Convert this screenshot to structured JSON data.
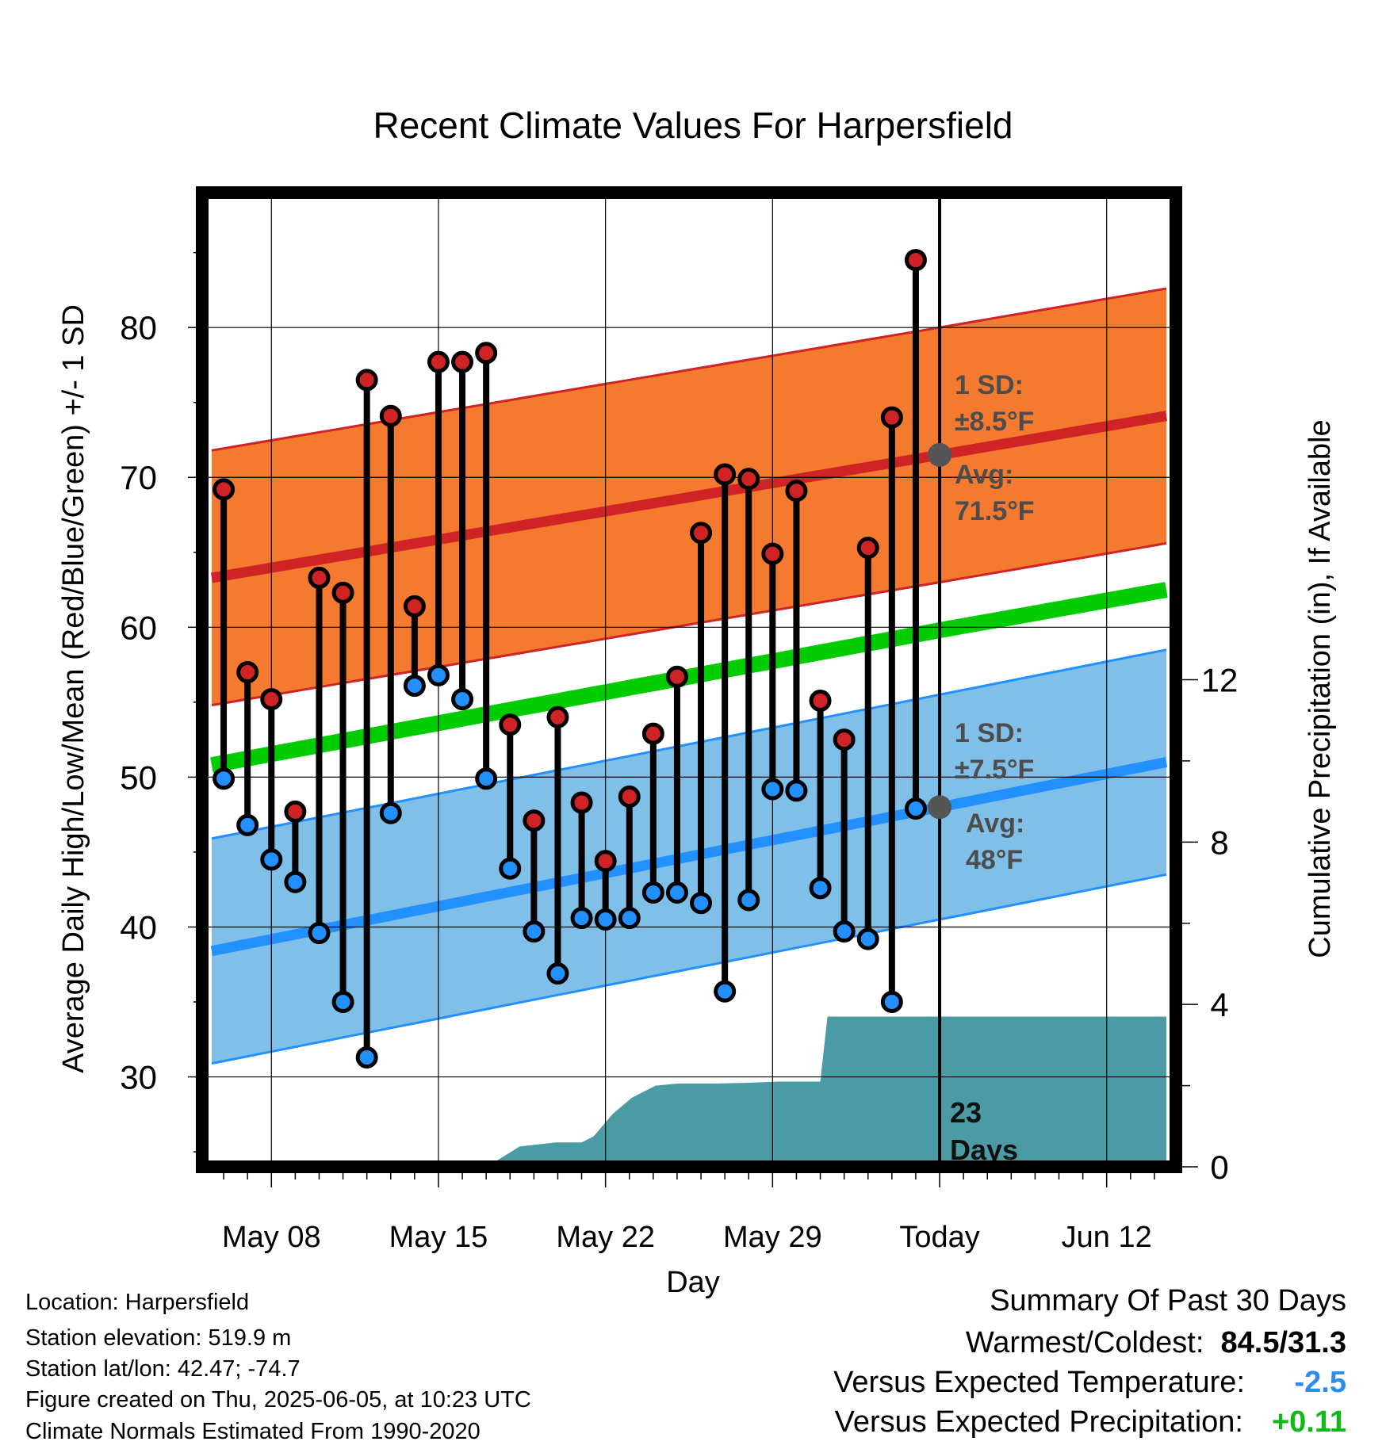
{
  "chart_data": {
    "type": "line",
    "title": "Recent Climate Values For Harpersfield",
    "xlabel": "Day",
    "ylabel": "Average Daily High/Low/Mean (Red/Blue/Green) +/- 1 SD",
    "y2label": "Cumulative Precipitation (in), If Available",
    "ylim": [
      24,
      89
    ],
    "y2lim": [
      0,
      24
    ],
    "y_ticks": [
      30,
      40,
      50,
      60,
      70,
      80
    ],
    "y2_ticks": [
      0,
      4,
      8,
      12
    ],
    "xlim": [
      5.1,
      45.9
    ],
    "x_ticks": [
      {
        "day": 8,
        "label": "May 08"
      },
      {
        "day": 15,
        "label": "May 15"
      },
      {
        "day": 22,
        "label": "May 22"
      },
      {
        "day": 29,
        "label": "May 29"
      },
      {
        "day": 36,
        "label": "Today"
      },
      {
        "day": 43,
        "label": "Jun 12"
      }
    ],
    "days": [
      6,
      7,
      8,
      9,
      10,
      11,
      12,
      13,
      14,
      15,
      16,
      17,
      18,
      19,
      20,
      21,
      22,
      23,
      24,
      25,
      26,
      27,
      28,
      29,
      30,
      31,
      32,
      33,
      34,
      35
    ],
    "highs": [
      69.2,
      57.0,
      55.2,
      47.7,
      63.3,
      62.3,
      76.5,
      74.1,
      61.4,
      77.7,
      77.7,
      78.3,
      53.5,
      47.1,
      54.0,
      48.3,
      44.4,
      48.7,
      52.9,
      56.7,
      66.3,
      70.2,
      69.9,
      64.9,
      69.1,
      55.1,
      52.5,
      65.3,
      74.0,
      84.5
    ],
    "lows": [
      49.9,
      46.8,
      44.5,
      43.0,
      39.6,
      35.0,
      31.3,
      47.6,
      56.1,
      56.8,
      55.2,
      49.9,
      43.9,
      39.7,
      36.9,
      40.6,
      40.5,
      40.6,
      42.3,
      42.3,
      41.6,
      35.7,
      41.8,
      49.2,
      49.1,
      42.6,
      39.7,
      39.2,
      35.0,
      47.9
    ],
    "normal_high": {
      "x": [
        5.5,
        36,
        45.5
      ],
      "values": [
        63.3,
        71.5,
        74.1
      ]
    },
    "normal_high_sd": 8.5,
    "normal_low": {
      "x": [
        5.5,
        36,
        45.5
      ],
      "values": [
        38.4,
        48.0,
        51.0
      ]
    },
    "normal_low_sd": 7.5,
    "normal_mean": {
      "x": [
        5.5,
        36,
        45.5
      ],
      "values": [
        50.8,
        59.8,
        62.5
      ]
    },
    "precipitation": {
      "x": [
        5.5,
        16.5,
        17.3,
        18.4,
        19.9,
        21.0,
        21.5,
        22.3,
        23.1,
        24.1,
        25.0,
        26.5,
        28.0,
        29.3,
        30.0,
        31.0,
        31.3,
        36,
        45.5
      ],
      "values": [
        0.0,
        0.0,
        0.1,
        0.5,
        0.6,
        0.6,
        0.75,
        1.3,
        1.7,
        2.0,
        2.05,
        2.05,
        2.07,
        2.1,
        2.1,
        2.1,
        3.7,
        3.7,
        3.7
      ]
    },
    "today_day": 36,
    "annotations": {
      "high_sd": "1 SD:",
      "high_sd_value": "±8.5°F",
      "high_avg": "Avg:",
      "high_avg_value": "71.5°F",
      "low_sd": "1 SD:",
      "low_sd_value": "±7.5°F",
      "low_avg": "Avg:",
      "low_avg_value": "48°F",
      "days_num": "23",
      "days_word": "Days"
    },
    "colors": {
      "high": "#d02325",
      "high_band": "#f47a30",
      "low": "#2290ff",
      "low_band": "#80c0e8",
      "mean": "#00cc00",
      "precip": "#4a9ba4",
      "annotation": "#4d4d4d",
      "grid": "#000000"
    },
    "grid": true
  },
  "footer": {
    "location": "Location: Harpersfield",
    "elevation": "Station elevation: 519.9 m",
    "latlon": "Station lat/lon: 42.47; -74.7",
    "created": "Figure created on Thu, 2025-06-05, at 10:23 UTC",
    "normals": "Climate Normals Estimated From 1990-2020"
  },
  "summary": {
    "title": "Summary Of Past 30 Days",
    "warm_label": "Warmest/Coldest:",
    "warm_value": "84.5/31.3",
    "temp_label": "Versus Expected Temperature:",
    "temp_value": "-2.5",
    "temp_color": "#2b8cee",
    "precip_label": "Versus Expected Precipitation:",
    "precip_value": "+0.11",
    "precip_color": "#10b81a"
  }
}
